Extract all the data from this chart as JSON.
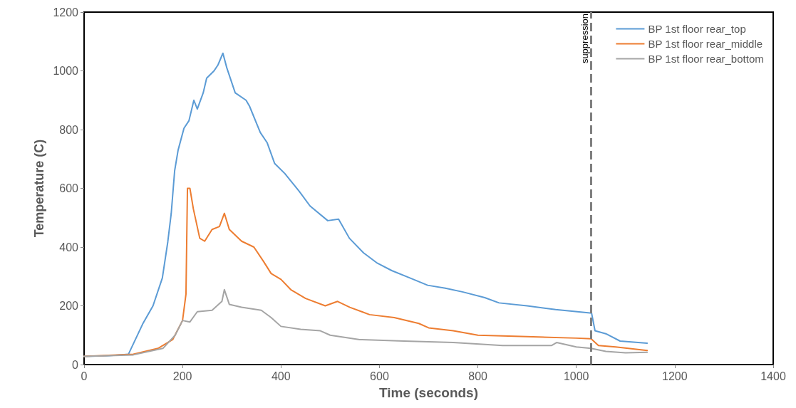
{
  "chart_data": {
    "type": "line",
    "xlabel": "Time (seconds)",
    "ylabel": "Temperature (C)",
    "xlim": [
      0,
      1400
    ],
    "xticks": [
      0,
      200,
      400,
      600,
      800,
      1000,
      1200,
      1400
    ],
    "ylim": [
      0,
      1200
    ],
    "yticks": [
      0,
      200,
      400,
      600,
      800,
      1000,
      1200
    ],
    "grid": false,
    "legend": "top right",
    "marker": "none",
    "line_style": "solid",
    "ref_lines": [
      {
        "axis": "x",
        "value": 1030,
        "label": "suppression",
        "color": "#7f7f7f",
        "line_style": "dashed"
      }
    ],
    "series": [
      {
        "name": "BP 1st floor rear_top",
        "color": "#5b9bd5",
        "x": [
          0,
          50,
          90,
          119,
          140,
          159,
          170,
          177,
          184,
          191,
          203,
          213,
          223,
          230,
          242,
          249,
          264,
          272,
          282,
          290,
          307,
          329,
          336,
          358,
          372,
          387,
          408,
          437,
          459,
          495,
          517,
          539,
          568,
          596,
          625,
          662,
          698,
          734,
          770,
          814,
          843,
          900,
          958,
          1002,
          1031,
          1038,
          1060,
          1089,
          1144
        ],
        "values": [
          28,
          30,
          35,
          138,
          200,
          295,
          417,
          514,
          660,
          730,
          805,
          830,
          900,
          870,
          925,
          975,
          1000,
          1020,
          1060,
          1010,
          925,
          900,
          880,
          790,
          755,
          685,
          650,
          590,
          540,
          490,
          495,
          430,
          380,
          345,
          320,
          295,
          270,
          260,
          247,
          228,
          210,
          200,
          187,
          180,
          175,
          115,
          105,
          80,
          73
        ]
      },
      {
        "name": "BP 1st floor rear_middle",
        "color": "#ed7d31",
        "x": [
          0,
          100,
          150,
          180,
          200,
          207,
          210,
          215,
          222,
          235,
          245,
          260,
          275,
          285,
          295,
          320,
          345,
          365,
          380,
          400,
          420,
          450,
          490,
          515,
          540,
          580,
          630,
          680,
          700,
          750,
          800,
          900,
          1000,
          1030,
          1045,
          1080,
          1144
        ],
        "values": [
          28,
          35,
          55,
          85,
          150,
          240,
          600,
          600,
          530,
          430,
          420,
          460,
          470,
          515,
          460,
          420,
          400,
          350,
          310,
          290,
          255,
          225,
          200,
          215,
          195,
          170,
          160,
          140,
          125,
          115,
          100,
          95,
          90,
          88,
          65,
          60,
          48
        ]
      },
      {
        "name": "BP 1st floor rear_bottom",
        "color": "#a5a5a5",
        "x": [
          0,
          100,
          160,
          185,
          200,
          215,
          230,
          260,
          280,
          285,
          295,
          320,
          360,
          380,
          400,
          440,
          480,
          500,
          560,
          650,
          750,
          850,
          950,
          960,
          1000,
          1030,
          1060,
          1100,
          1144
        ],
        "values": [
          28,
          33,
          55,
          100,
          150,
          145,
          180,
          185,
          215,
          255,
          205,
          195,
          185,
          160,
          130,
          120,
          115,
          100,
          85,
          80,
          75,
          65,
          65,
          75,
          60,
          55,
          45,
          40,
          42
        ]
      }
    ]
  }
}
